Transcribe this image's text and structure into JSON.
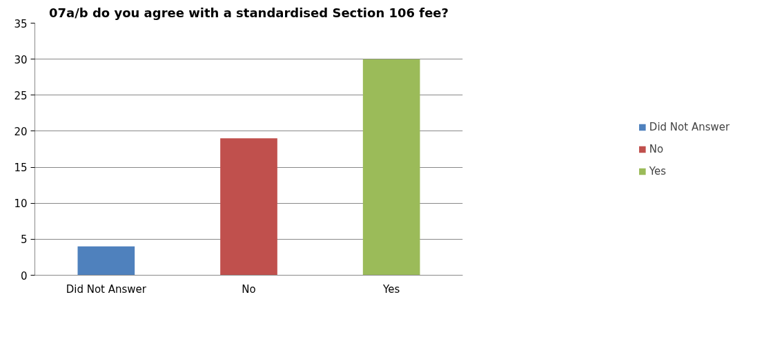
{
  "chart_data": {
    "type": "bar",
    "title": "07a/b do you agree with a standardised Section 106 fee?",
    "categories": [
      "Did Not Answer",
      "No",
      "Yes"
    ],
    "stacked": true,
    "series": [
      {
        "name": "Did Not Answer",
        "color": "#4f81bd",
        "values": [
          4,
          null,
          null
        ]
      },
      {
        "name": "No",
        "color": "#c0504d",
        "values": [
          null,
          19,
          null
        ]
      },
      {
        "name": "Yes",
        "color": "#9bbb59",
        "values": [
          null,
          null,
          30
        ]
      }
    ],
    "ylim": [
      0,
      35
    ],
    "yticks": [
      0,
      5,
      10,
      15,
      20,
      25,
      30,
      35
    ],
    "grid": "y",
    "legend": "right"
  }
}
